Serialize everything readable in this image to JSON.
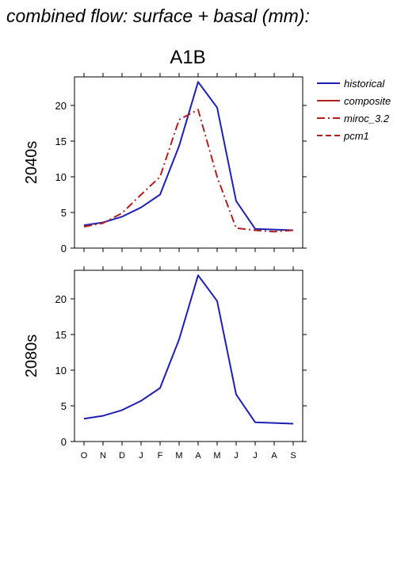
{
  "figure_title": "combined flow: surface + basal (mm):",
  "scenario_title": "A1B",
  "colors": {
    "historical": "#1f1fb4",
    "composite": "#b21f1f",
    "miroc_3.2": "#b21f1f",
    "pcm1": "#b21f1f",
    "axis": "#000000"
  },
  "legend": [
    {
      "label": "historical",
      "color": "#1f1fb4",
      "dash": "solid"
    },
    {
      "label": "composite",
      "color": "#b21f1f",
      "dash": "solid"
    },
    {
      "label": "miroc_3.2",
      "color": "#b21f1f",
      "dash": "dashdot"
    },
    {
      "label": "pcm1",
      "color": "#b21f1f",
      "dash": "dashed"
    }
  ],
  "chart_data": [
    {
      "type": "line",
      "row_label": "2040s",
      "categories": [
        "O",
        "N",
        "D",
        "J",
        "F",
        "M",
        "A",
        "M",
        "J",
        "J",
        "A",
        "S"
      ],
      "ylim": [
        0,
        24
      ],
      "yticks": [
        0,
        5,
        10,
        15,
        20
      ],
      "show_month_labels": false,
      "series": [
        {
          "name": "historical",
          "color": "#1f1fb4",
          "dash": "solid",
          "values": [
            3.2,
            3.6,
            4.4,
            5.7,
            7.5,
            14.3,
            23.3,
            19.7,
            6.6,
            2.7,
            2.6,
            2.5
          ]
        },
        {
          "name": "miroc_3.2",
          "color": "#b21f1f",
          "dash": "dashdot",
          "values": [
            3.0,
            3.5,
            4.9,
            7.5,
            10.0,
            18.0,
            19.4,
            10.0,
            2.8,
            2.5,
            2.3,
            2.5
          ]
        }
      ]
    },
    {
      "type": "line",
      "row_label": "2080s",
      "categories": [
        "O",
        "N",
        "D",
        "J",
        "F",
        "M",
        "A",
        "M",
        "J",
        "J",
        "A",
        "S"
      ],
      "ylim": [
        0,
        24
      ],
      "yticks": [
        0,
        5,
        10,
        15,
        20
      ],
      "show_month_labels": true,
      "series": [
        {
          "name": "historical",
          "color": "#1f1fb4",
          "dash": "solid",
          "values": [
            3.2,
            3.6,
            4.4,
            5.7,
            7.5,
            14.3,
            23.3,
            19.7,
            6.6,
            2.7,
            2.6,
            2.5
          ]
        }
      ]
    }
  ]
}
